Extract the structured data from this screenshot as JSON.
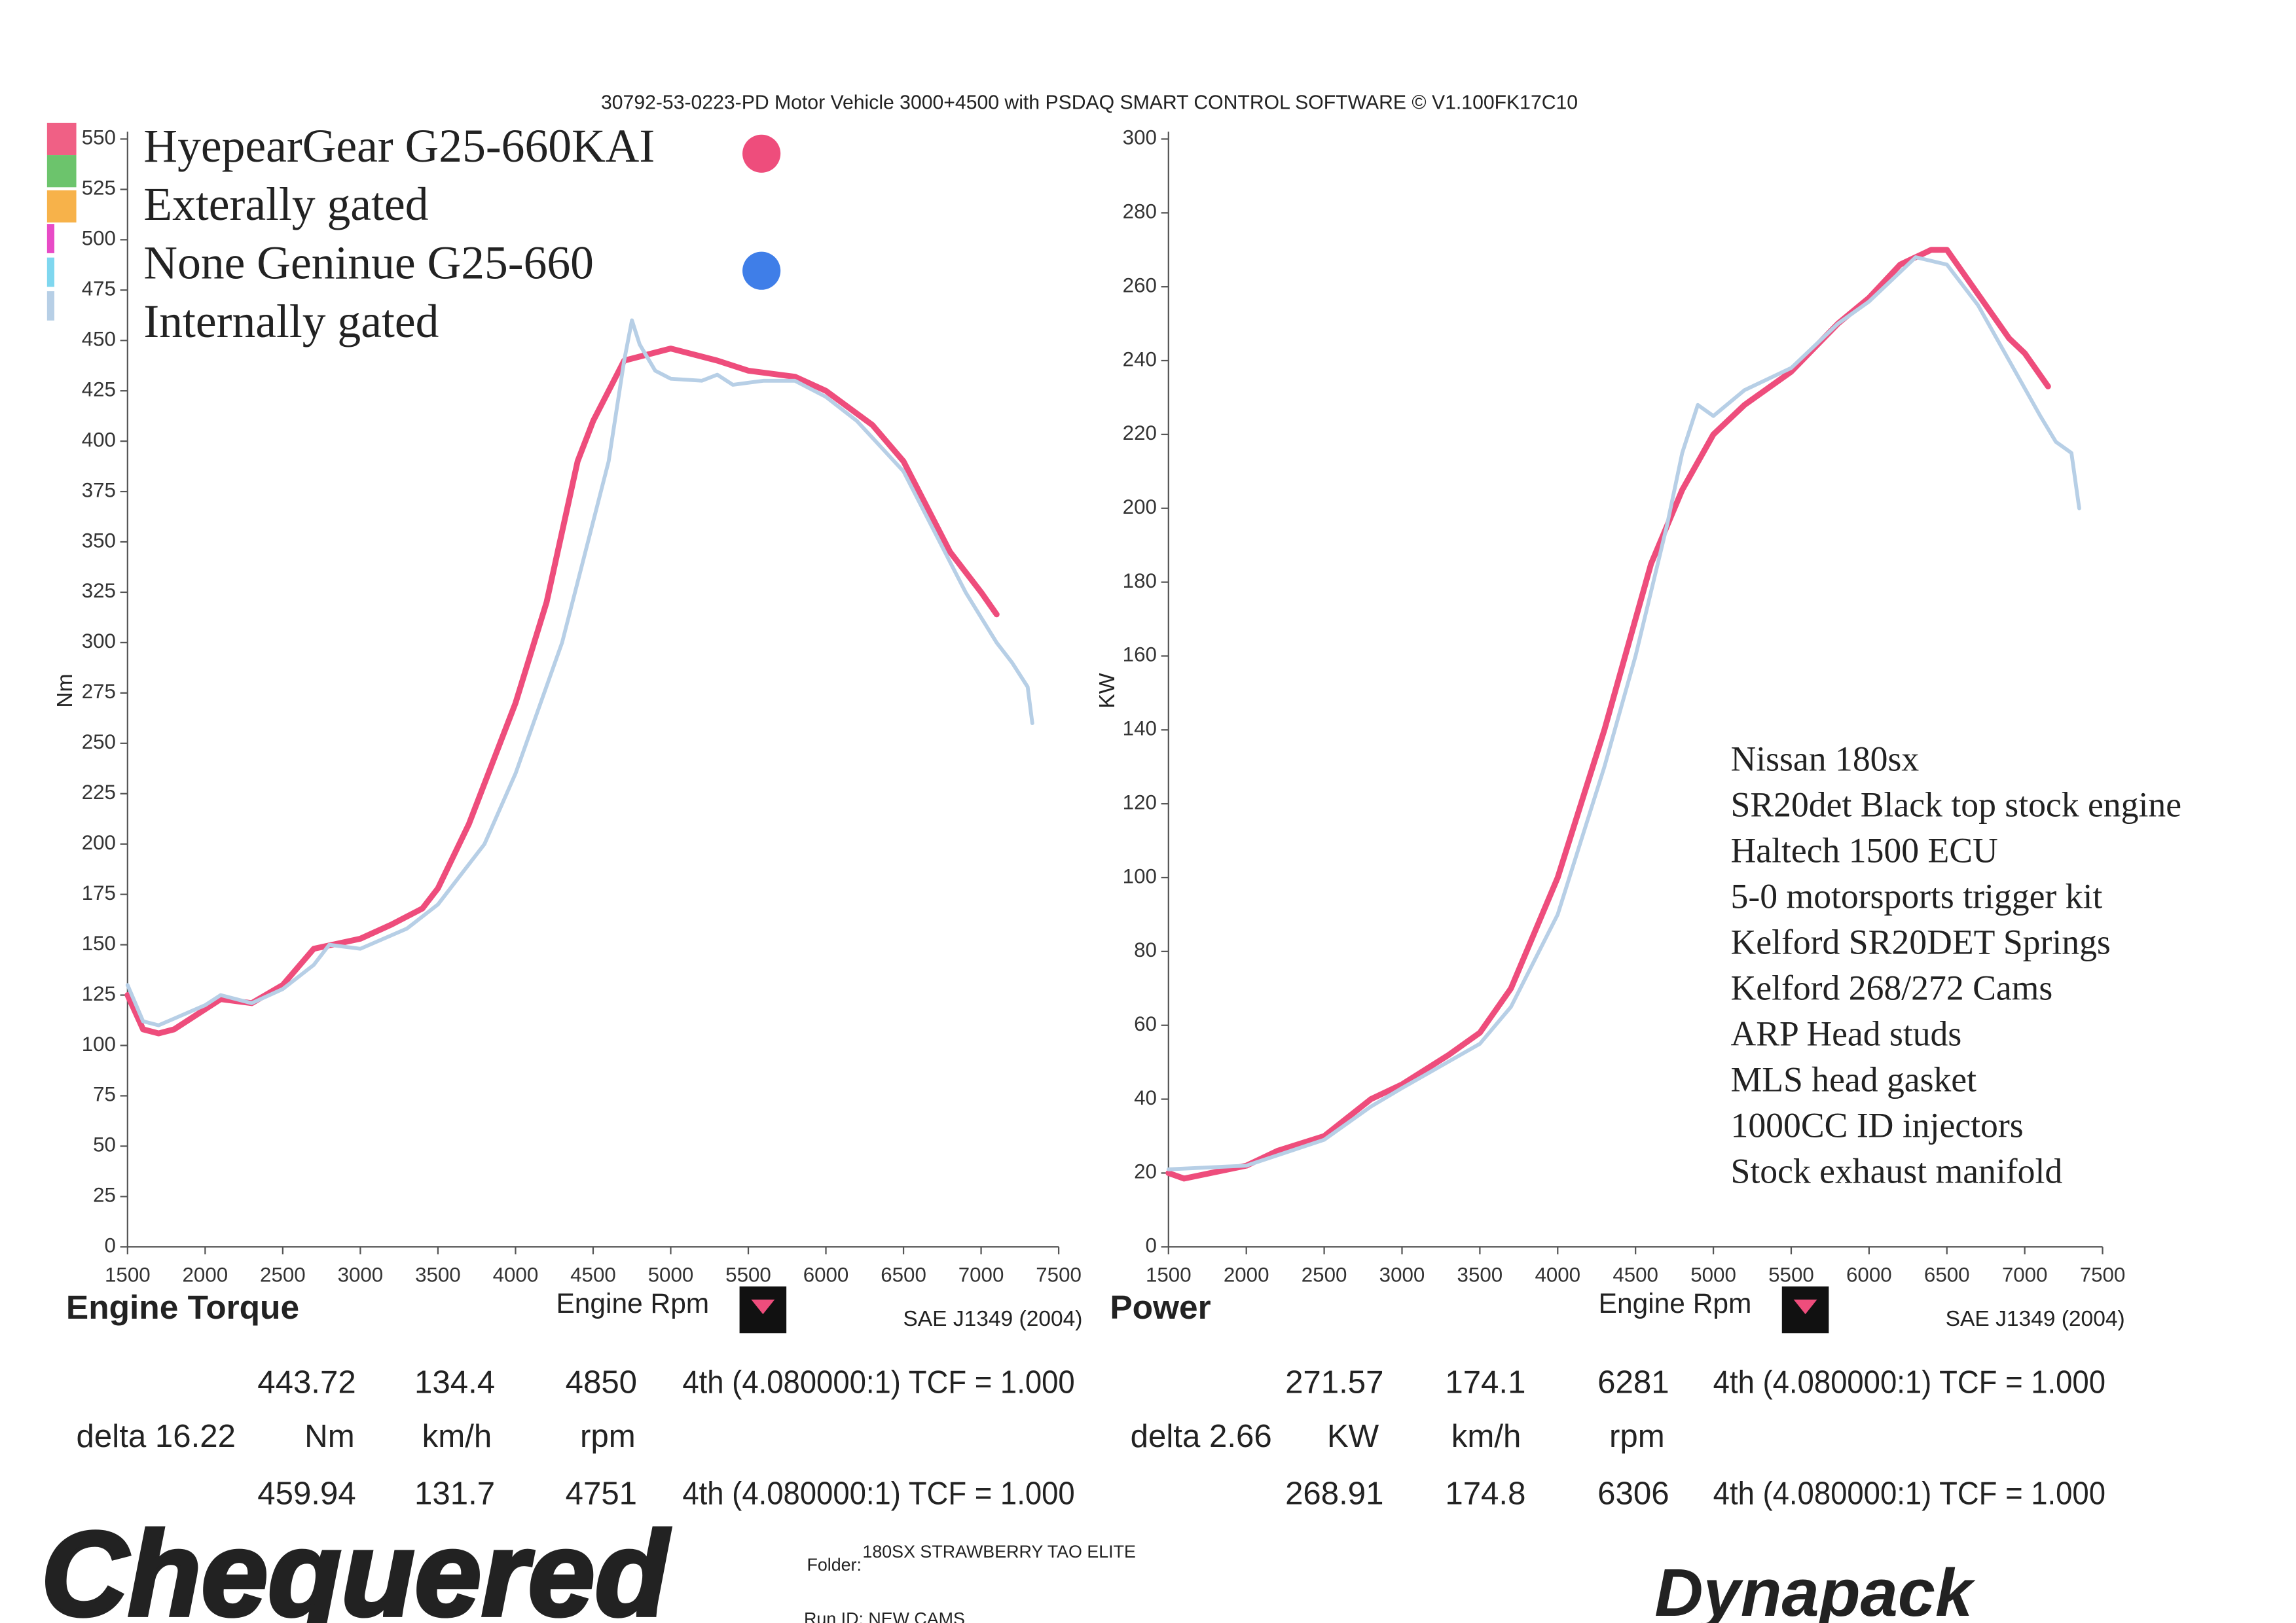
{
  "header": {
    "software": "30792-53-0223-PD Motor Vehicle 3000+4500 with PSDAQ SMART CONTROL SOFTWARE © V1.100FK17C10"
  },
  "chart_data": [
    {
      "type": "line",
      "title": "Engine Torque",
      "x_label": "Engine Rpm",
      "y_label": "Nm",
      "standard": "SAE J1349 (2004)",
      "xlim": [
        1500,
        7500
      ],
      "ylim": [
        0,
        550
      ],
      "xticks": [
        1500,
        2000,
        2500,
        3000,
        3500,
        4000,
        4500,
        5000,
        5500,
        6000,
        6500,
        7000,
        7500
      ],
      "yticks": [
        0,
        25,
        50,
        75,
        100,
        125,
        150,
        175,
        200,
        225,
        250,
        275,
        300,
        325,
        350,
        375,
        400,
        425,
        450,
        475,
        500,
        525,
        550
      ],
      "series": [
        {
          "name": "HyepearGear G25-660KAI",
          "description": "Exterally gated",
          "color": "#ee4d7c",
          "x": [
            1500,
            1600,
            1700,
            1800,
            2000,
            2100,
            2300,
            2500,
            2700,
            3000,
            3200,
            3400,
            3500,
            3700,
            4000,
            4200,
            4400,
            4500,
            4700,
            5000,
            5300,
            5500,
            5800,
            6000,
            6300,
            6500,
            6800,
            7000,
            7100
          ],
          "values": [
            125,
            108,
            106,
            108,
            118,
            123,
            121,
            130,
            148,
            153,
            160,
            168,
            178,
            210,
            270,
            320,
            390,
            410,
            440,
            446,
            440,
            435,
            432,
            425,
            408,
            390,
            345,
            325,
            314
          ]
        },
        {
          "name": "None Geninue G25-660",
          "description": "Internally gated",
          "color": "#b7cfe6",
          "x": [
            1500,
            1600,
            1700,
            2000,
            2100,
            2300,
            2500,
            2700,
            2800,
            3000,
            3300,
            3500,
            3800,
            4000,
            4300,
            4500,
            4600,
            4700,
            4750,
            4800,
            4900,
            5000,
            5200,
            5300,
            5400,
            5600,
            5800,
            6000,
            6200,
            6500,
            6700,
            6900,
            7100,
            7200,
            7300,
            7330
          ],
          "values": [
            130,
            112,
            110,
            120,
            125,
            121,
            128,
            140,
            150,
            148,
            158,
            170,
            200,
            235,
            300,
            360,
            390,
            440,
            460,
            448,
            435,
            431,
            430,
            433,
            428,
            430,
            430,
            422,
            410,
            385,
            355,
            325,
            300,
            290,
            278,
            260
          ]
        }
      ]
    },
    {
      "type": "line",
      "title": "Power",
      "x_label": "Engine Rpm",
      "y_label": "KW",
      "standard": "SAE J1349 (2004)",
      "xlim": [
        1500,
        7500
      ],
      "ylim": [
        0,
        300
      ],
      "xticks": [
        1500,
        2000,
        2500,
        3000,
        3500,
        4000,
        4500,
        5000,
        5500,
        6000,
        6500,
        7000,
        7500
      ],
      "yticks": [
        0,
        20,
        40,
        60,
        80,
        100,
        120,
        140,
        160,
        180,
        200,
        220,
        240,
        260,
        280,
        300
      ],
      "series": [
        {
          "color": "#ee4d7c",
          "x": [
            1500,
            1600,
            2000,
            2200,
            2500,
            2800,
            3000,
            3300,
            3500,
            3700,
            4000,
            4300,
            4500,
            4600,
            4800,
            5000,
            5200,
            5500,
            5800,
            6000,
            6200,
            6400,
            6500,
            6700,
            6900,
            7000,
            7150
          ],
          "values": [
            20,
            18.5,
            22,
            26,
            30,
            40,
            44,
            52,
            58,
            70,
            100,
            140,
            170,
            185,
            205,
            220,
            228,
            237,
            250,
            257,
            266,
            270,
            270,
            258,
            246,
            242,
            233
          ]
        },
        {
          "color": "#b7cfe6",
          "x": [
            1500,
            2000,
            2500,
            2800,
            3000,
            3500,
            3700,
            4000,
            4300,
            4500,
            4700,
            4800,
            4900,
            5000,
            5200,
            5500,
            5800,
            6000,
            6200,
            6300,
            6500,
            6700,
            6900,
            7100,
            7200,
            7300,
            7350
          ],
          "values": [
            21,
            22,
            29,
            38,
            43,
            55,
            65,
            90,
            130,
            160,
            195,
            215,
            228,
            225,
            232,
            238,
            250,
            256,
            264,
            268,
            266,
            255,
            240,
            225,
            218,
            215,
            200
          ]
        }
      ]
    }
  ],
  "readouts": [
    {
      "upper": [
        "443.72",
        "134.4",
        "4850",
        "4th (4.080000:1) TCF = 1.000"
      ],
      "delta": "delta 16.22",
      "units": [
        "Nm",
        "km/h",
        "rpm"
      ],
      "lower": [
        "459.94",
        "131.7",
        "4751",
        "4th (4.080000:1) TCF = 1.000"
      ]
    },
    {
      "upper": [
        "271.57",
        "174.1",
        "6281",
        "4th (4.080000:1) TCF = 1.000"
      ],
      "delta": "delta 2.66",
      "units": [
        "KW",
        "km/h",
        "rpm"
      ],
      "lower": [
        "268.91",
        "174.8",
        "6306",
        "4th (4.080000:1) TCF = 1.000"
      ]
    }
  ],
  "notes": [
    "Nissan 180sx",
    "SR20det Black top stock engine",
    "Haltech 1500 ECU",
    "5-0 motorsports trigger kit",
    "Kelford SR20DET Springs",
    "Kelford 268/272 Cams",
    "ARP Head studs",
    "MLS head gasket",
    "1000CC ID injectors",
    "Stock exhaust manifold"
  ],
  "footer": {
    "brand": "Chequered",
    "folder_label": "Folder:",
    "folder": "180SX STRAWBERRY TAO ELITE",
    "run_id": "Run ID: NEW CAMS",
    "dyno": "Dynapack"
  }
}
